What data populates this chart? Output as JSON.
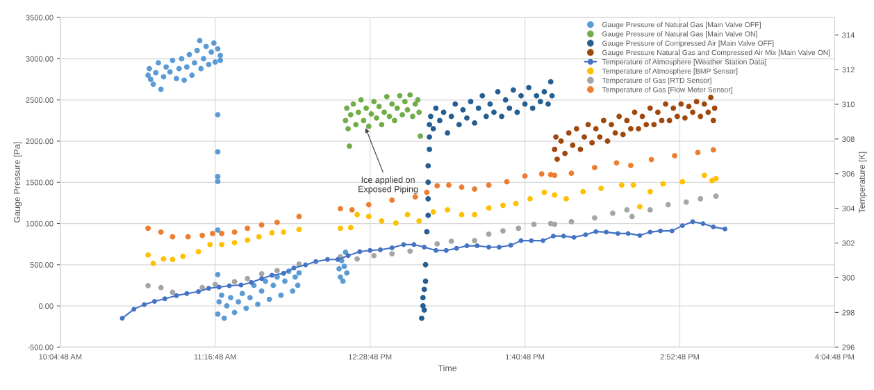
{
  "chart_data": {
    "type": "scatter",
    "xlabel": "Time",
    "ylabel": "Gauge Pressure [Pa]",
    "y2label": "Temperature [K]",
    "xlim": [
      10.08,
      16.08
    ],
    "xticks": [
      {
        "value": 10.08,
        "label": "10:04:48 AM"
      },
      {
        "value": 11.28,
        "label": "11:16:48 AM"
      },
      {
        "value": 12.48,
        "label": "12:28:48 PM"
      },
      {
        "value": 13.68,
        "label": "1:40:48 PM"
      },
      {
        "value": 14.88,
        "label": "2:52:48 PM"
      },
      {
        "value": 16.08,
        "label": "4:04:48 PM"
      }
    ],
    "ylim": [
      -500,
      3500
    ],
    "yticks": [
      {
        "value": -500,
        "label": "-500.00"
      },
      {
        "value": 0,
        "label": "0.00"
      },
      {
        "value": 500,
        "label": "500.00"
      },
      {
        "value": 1000,
        "label": "1000.00"
      },
      {
        "value": 1500,
        "label": "1500.00"
      },
      {
        "value": 2000,
        "label": "2000.00"
      },
      {
        "value": 2500,
        "label": "2500.00"
      },
      {
        "value": 3000,
        "label": "3000.00"
      },
      {
        "value": 3500,
        "label": "3500.00"
      }
    ],
    "y2lim": [
      296,
      315
    ],
    "y2ticks": [
      296,
      298,
      300,
      302,
      304,
      306,
      308,
      310,
      312,
      314
    ],
    "grid": true,
    "legend": "top right",
    "marker": "circle",
    "annotations": [
      {
        "text": "Ice applied on\nExposed Piping",
        "x": 12.44,
        "y": 2181
      }
    ],
    "series": [
      {
        "name": "Gauge Pressure of Natural Gas [Main Valve OFF]",
        "color": "#5b9bd5",
        "axis": "y",
        "x": [
          10.76,
          10.77,
          10.78,
          10.8,
          10.82,
          10.84,
          10.86,
          10.88,
          10.9,
          10.93,
          10.95,
          10.98,
          11.0,
          11.02,
          11.04,
          11.06,
          11.08,
          11.1,
          11.12,
          11.14,
          11.16,
          11.17,
          11.19,
          11.21,
          11.23,
          11.25,
          11.27,
          11.28,
          11.3,
          11.32,
          11.32,
          11.3,
          11.3,
          11.3,
          11.3,
          11.3,
          11.3,
          11.3,
          11.31,
          11.33,
          11.35,
          11.37,
          11.4,
          11.43,
          11.46,
          11.49,
          11.52,
          11.55,
          11.58,
          11.61,
          11.64,
          11.67,
          11.7,
          11.73,
          11.76,
          11.79,
          11.82,
          11.85,
          11.88,
          11.9,
          11.92,
          11.93,
          12.24,
          12.25,
          12.26,
          12.27,
          12.28,
          12.29,
          12.3
        ],
        "values": [
          2800,
          2880,
          2750,
          2690,
          2830,
          2950,
          2630,
          2780,
          2900,
          2840,
          2980,
          2760,
          2880,
          3000,
          2740,
          2900,
          3050,
          2800,
          2950,
          3100,
          3220,
          2880,
          3000,
          3150,
          2930,
          3080,
          3190,
          2960,
          3120,
          3040,
          2980,
          2320,
          1870,
          1570,
          1510,
          920,
          380,
          -100,
          50,
          130,
          -150,
          0,
          100,
          -80,
          50,
          150,
          -30,
          100,
          250,
          20,
          180,
          300,
          80,
          250,
          350,
          130,
          300,
          420,
          180,
          350,
          250,
          400,
          450,
          350,
          550,
          300,
          480,
          650,
          400
        ]
      },
      {
        "name": "Gauge Pressure of Natural Gas [Main Valve ON]",
        "color": "#70ad47",
        "axis": "y",
        "x": [
          12.29,
          12.3,
          12.31,
          12.32,
          12.33,
          12.35,
          12.37,
          12.39,
          12.41,
          12.43,
          12.45,
          12.47,
          12.49,
          12.51,
          12.53,
          12.55,
          12.57,
          12.59,
          12.61,
          12.63,
          12.65,
          12.67,
          12.69,
          12.71,
          12.73,
          12.75,
          12.77,
          12.79,
          12.81,
          12.83,
          12.85,
          12.86,
          12.87
        ],
        "values": [
          2250,
          2400,
          2150,
          1940,
          2320,
          2450,
          2200,
          2350,
          2500,
          2250,
          2400,
          2180,
          2330,
          2480,
          2280,
          2420,
          2200,
          2350,
          2540,
          2300,
          2450,
          2250,
          2400,
          2550,
          2320,
          2480,
          2380,
          2560,
          2300,
          2450,
          2500,
          2350,
          2060
        ]
      },
      {
        "name": "Gauge Pressure of Compressed Air [Main Valve OFF]",
        "color": "#255e91",
        "axis": "y",
        "x": [
          12.88,
          12.89,
          12.89,
          12.9,
          12.9,
          12.91,
          12.91,
          12.92,
          12.93,
          12.93,
          12.93,
          12.93,
          12.94,
          12.94,
          12.94,
          12.95,
          12.97,
          12.99,
          13.02,
          13.05,
          13.08,
          13.11,
          13.14,
          13.17,
          13.2,
          13.23,
          13.26,
          13.29,
          13.32,
          13.35,
          13.38,
          13.41,
          13.44,
          13.47,
          13.5,
          13.53,
          13.56,
          13.59,
          13.62,
          13.65,
          13.68,
          13.71,
          13.74,
          13.77,
          13.8,
          13.83,
          13.86,
          13.88,
          13.89
        ],
        "values": [
          -150,
          0,
          100,
          200,
          -50,
          300,
          500,
          900,
          1100,
          1300,
          1500,
          1700,
          1900,
          2050,
          2200,
          2300,
          2150,
          2400,
          2250,
          2350,
          2100,
          2300,
          2450,
          2200,
          2380,
          2280,
          2480,
          2220,
          2400,
          2550,
          2300,
          2450,
          2350,
          2600,
          2300,
          2500,
          2400,
          2620,
          2350,
          2550,
          2450,
          2650,
          2400,
          2550,
          2480,
          2600,
          2450,
          2720,
          2550
        ]
      },
      {
        "name": "Gauge Pressure Natural Gas and Compressed Air Mix [Main Valve ON]",
        "color": "#9e480e",
        "axis": "y",
        "x": [
          13.91,
          13.92,
          13.93,
          13.96,
          13.99,
          14.02,
          14.05,
          14.08,
          14.11,
          14.14,
          14.17,
          14.2,
          14.23,
          14.26,
          14.29,
          14.32,
          14.35,
          14.38,
          14.41,
          14.44,
          14.47,
          14.5,
          14.53,
          14.56,
          14.59,
          14.62,
          14.65,
          14.68,
          14.71,
          14.74,
          14.77,
          14.8,
          14.83,
          14.86,
          14.89,
          14.92,
          14.95,
          14.98,
          15.01,
          15.04,
          15.07,
          15.1,
          15.12,
          15.14,
          15.15
        ],
        "values": [
          1900,
          2050,
          1780,
          2000,
          1850,
          2100,
          1950,
          2150,
          1900,
          2050,
          2200,
          1980,
          2150,
          2050,
          2250,
          2000,
          2200,
          2100,
          2300,
          2080,
          2250,
          2150,
          2350,
          2150,
          2300,
          2200,
          2400,
          2200,
          2350,
          2250,
          2450,
          2250,
          2400,
          2300,
          2450,
          2280,
          2420,
          2350,
          2480,
          2300,
          2450,
          2350,
          2530,
          2250,
          2400
        ]
      },
      {
        "name": "Temperature of Atmosphere [Weather Station Data]",
        "color": "#4472c4",
        "axis": "y2",
        "type": "line",
        "marker": "circle",
        "line_style": "solid",
        "x": [
          10.56,
          10.65,
          10.73,
          10.81,
          10.89,
          10.98,
          11.06,
          11.15,
          11.23,
          11.31,
          11.39,
          11.48,
          11.56,
          11.64,
          11.72,
          11.81,
          11.89,
          11.98,
          12.06,
          12.15,
          12.23,
          12.31,
          12.4,
          12.48,
          12.56,
          12.65,
          12.74,
          12.82,
          12.9,
          12.99,
          13.07,
          13.15,
          13.23,
          13.31,
          13.4,
          13.48,
          13.57,
          13.65,
          13.73,
          13.82,
          13.9,
          13.98,
          14.06,
          14.15,
          14.23,
          14.31,
          14.4,
          14.48,
          14.57,
          14.65,
          14.73,
          14.82,
          14.9,
          14.98,
          15.06,
          15.14,
          15.23
        ],
        "values": [
          297.66,
          298.18,
          298.45,
          298.64,
          298.79,
          298.97,
          299.09,
          299.2,
          299.39,
          299.46,
          299.54,
          299.58,
          299.73,
          299.95,
          300.14,
          300.25,
          300.56,
          300.74,
          300.93,
          301.05,
          301.05,
          301.27,
          301.5,
          301.57,
          301.61,
          301.72,
          301.91,
          301.91,
          301.76,
          301.57,
          301.57,
          301.69,
          301.84,
          301.84,
          301.76,
          301.76,
          301.87,
          302.14,
          302.14,
          302.14,
          302.4,
          302.4,
          302.33,
          302.48,
          302.66,
          302.63,
          302.55,
          302.55,
          302.44,
          302.63,
          302.7,
          302.7,
          303.0,
          303.23,
          303.12,
          302.93,
          302.81
        ]
      },
      {
        "name": "Temperature of Atmosphere [BMP Sensor]",
        "color": "#ffc000",
        "axis": "y2",
        "x": [
          10.76,
          10.8,
          10.88,
          10.95,
          11.03,
          11.15,
          11.24,
          11.33,
          11.43,
          11.53,
          11.62,
          11.72,
          11.81,
          11.93,
          12.25,
          12.33,
          12.38,
          12.47,
          12.57,
          12.68,
          12.77,
          12.86,
          12.97,
          13.08,
          13.19,
          13.29,
          13.4,
          13.51,
          13.61,
          13.72,
          13.83,
          13.91,
          14.0,
          14.13,
          14.27,
          14.43,
          14.52,
          14.57,
          14.65,
          14.75,
          14.9,
          15.07,
          15.13,
          15.16
        ],
        "values": [
          301.31,
          300.82,
          301.08,
          301.05,
          301.23,
          301.5,
          301.91,
          301.91,
          302.02,
          302.17,
          302.36,
          302.59,
          302.63,
          302.78,
          302.85,
          302.89,
          303.64,
          303.53,
          303.27,
          303.15,
          303.64,
          303.27,
          303.79,
          303.91,
          303.64,
          303.64,
          304.02,
          304.17,
          304.28,
          304.55,
          304.92,
          304.77,
          304.55,
          304.96,
          305.15,
          305.34,
          305.34,
          304.09,
          304.96,
          305.41,
          305.53,
          305.9,
          305.6,
          305.71
        ]
      },
      {
        "name": "Temperature of Gas [RTD Sensor]",
        "color": "#a5a5a5",
        "axis": "y2",
        "x": [
          10.76,
          10.86,
          10.95,
          11.18,
          11.28,
          11.43,
          11.53,
          11.64,
          11.76,
          11.93,
          12.25,
          12.38,
          12.51,
          12.65,
          12.79,
          13.0,
          13.11,
          13.29,
          13.4,
          13.51,
          13.63,
          13.75,
          13.88,
          13.91,
          14.04,
          14.22,
          14.36,
          14.47,
          14.51,
          14.65,
          14.79,
          14.93,
          15.04,
          15.16
        ],
        "values": [
          299.54,
          299.43,
          299.16,
          299.43,
          299.61,
          299.77,
          299.95,
          300.22,
          300.41,
          300.78,
          301.2,
          301.08,
          301.27,
          301.38,
          301.53,
          301.95,
          302.1,
          302.14,
          302.51,
          302.7,
          302.85,
          303.08,
          303.12,
          303.08,
          303.23,
          303.45,
          303.72,
          303.91,
          303.53,
          303.91,
          304.21,
          304.36,
          304.55,
          304.7
        ]
      },
      {
        "name": "Temperature of Gas [Flow Meter Sensor]",
        "color": "#ed7d31",
        "axis": "y2",
        "x": [
          10.76,
          10.86,
          10.95,
          11.07,
          11.18,
          11.26,
          11.33,
          11.43,
          11.53,
          11.64,
          11.76,
          11.93,
          12.25,
          12.34,
          12.47,
          12.65,
          12.83,
          12.92,
          13.0,
          13.09,
          13.19,
          13.29,
          13.4,
          13.54,
          13.68,
          13.81,
          13.88,
          13.91,
          14.04,
          14.22,
          14.39,
          14.5,
          14.66,
          14.84,
          15.02,
          15.14
        ],
        "values": [
          302.85,
          302.63,
          302.36,
          302.36,
          302.44,
          302.55,
          302.55,
          302.63,
          302.85,
          303.04,
          303.19,
          303.53,
          303.98,
          303.91,
          304.21,
          304.47,
          304.66,
          304.92,
          305.3,
          305.34,
          305.22,
          305.11,
          305.34,
          305.53,
          305.86,
          305.98,
          305.94,
          305.9,
          306.02,
          306.35,
          306.62,
          306.47,
          306.81,
          307.03,
          307.22,
          307.37
        ]
      }
    ]
  }
}
